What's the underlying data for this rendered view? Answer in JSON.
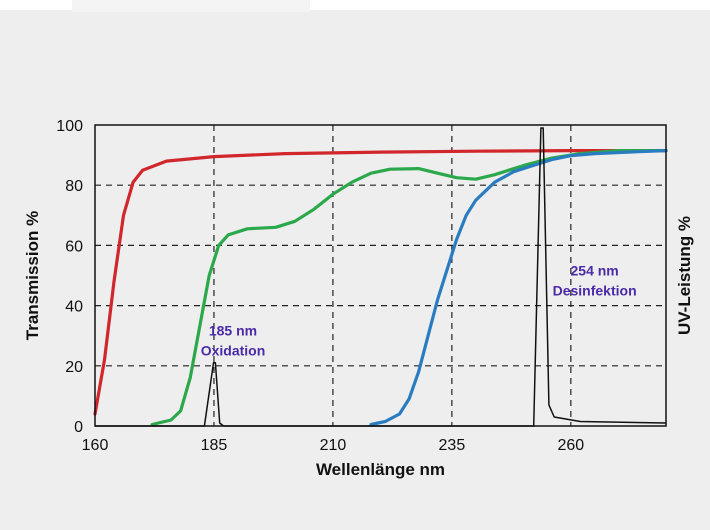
{
  "chart_data": {
    "type": "line",
    "title": "",
    "xlabel": "Wellenlänge nm",
    "ylabel_left": "Transmission %",
    "ylabel_right": "UV-Leistung %",
    "xlim": [
      160,
      280
    ],
    "ylim": [
      0,
      100
    ],
    "x_ticks": [
      160,
      185,
      210,
      235,
      260
    ],
    "y_ticks": [
      0,
      20,
      40,
      60,
      80,
      100
    ],
    "grid": true,
    "colors": {
      "red": "#d1262b",
      "green": "#2aa84a",
      "blue": "#2a7cc0",
      "spectrum": "#111111",
      "annotation": "#4b2aa8"
    },
    "series": [
      {
        "color": "#d1262b",
        "points": [
          [
            160,
            4
          ],
          [
            162,
            22
          ],
          [
            164,
            48
          ],
          [
            166,
            70
          ],
          [
            168,
            81
          ],
          [
            170,
            85
          ],
          [
            175,
            88
          ],
          [
            185,
            89.5
          ],
          [
            200,
            90.5
          ],
          [
            220,
            91
          ],
          [
            240,
            91.3
          ],
          [
            260,
            91.5
          ],
          [
            280,
            91.5
          ]
        ]
      },
      {
        "color": "#2aa84a",
        "points": [
          [
            172,
            0.5
          ],
          [
            176,
            2
          ],
          [
            178,
            5
          ],
          [
            180,
            16
          ],
          [
            182,
            33
          ],
          [
            184,
            50
          ],
          [
            186,
            60
          ],
          [
            188,
            63.5
          ],
          [
            192,
            65.5
          ],
          [
            198,
            66
          ],
          [
            202,
            68
          ],
          [
            206,
            72
          ],
          [
            210,
            77
          ],
          [
            214,
            81
          ],
          [
            218,
            84
          ],
          [
            222,
            85.3
          ],
          [
            228,
            85.5
          ],
          [
            232,
            84
          ],
          [
            236,
            82.5
          ],
          [
            240,
            82
          ],
          [
            244,
            83.5
          ],
          [
            250,
            86.5
          ],
          [
            256,
            89
          ],
          [
            262,
            90.5
          ],
          [
            270,
            91.5
          ],
          [
            280,
            91.5
          ]
        ]
      },
      {
        "color": "#2a7cc0",
        "points": [
          [
            218,
            0.5
          ],
          [
            221,
            1.5
          ],
          [
            224,
            4
          ],
          [
            226,
            9
          ],
          [
            228,
            18
          ],
          [
            230,
            30
          ],
          [
            232,
            42
          ],
          [
            234,
            52
          ],
          [
            236,
            62
          ],
          [
            238,
            70
          ],
          [
            240,
            75
          ],
          [
            244,
            81
          ],
          [
            248,
            84.5
          ],
          [
            252,
            86.5
          ],
          [
            256,
            88.5
          ],
          [
            260,
            89.8
          ],
          [
            265,
            90.5
          ],
          [
            272,
            91
          ],
          [
            280,
            91.5
          ]
        ]
      }
    ],
    "spectrum": {
      "color": "#111111",
      "points": [
        [
          160,
          0
        ],
        [
          183,
          0
        ],
        [
          184.9,
          21
        ],
        [
          185.3,
          21
        ],
        [
          186.2,
          1
        ],
        [
          187,
          0
        ],
        [
          252.2,
          0
        ],
        [
          253.7,
          99
        ],
        [
          254.2,
          99
        ],
        [
          255.4,
          7
        ],
        [
          256.5,
          3
        ],
        [
          262,
          1.5
        ],
        [
          280,
          1
        ]
      ]
    },
    "annotations": [
      {
        "line1": "185 nm",
        "line2": "Oxidation",
        "x": 189,
        "y": 30
      },
      {
        "line1": "254 nm",
        "line2": "Desinfektion",
        "x": 265,
        "y": 50
      }
    ]
  }
}
